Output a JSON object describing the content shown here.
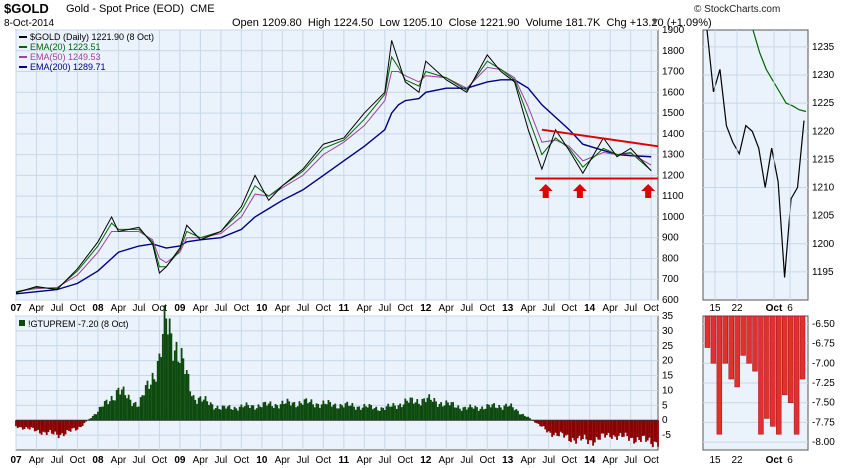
{
  "header": {
    "symbol": "$GOLD",
    "description": "Gold - Spot Price (EOD)",
    "exchange": "CME",
    "date": "8-Oct-2014",
    "open_label": "Open",
    "open": "1209.80",
    "high_label": "High",
    "high": "1224.50",
    "low_label": "Low",
    "low": "1205.10",
    "close_label": "Close",
    "close": "1221.90",
    "volume_label": "Volume",
    "volume": "181.7K",
    "chg_label": "Chg",
    "chg": "+13.20 (+1.09%)",
    "menu_glyph": "▼",
    "watermark": "© StockCharts.com"
  },
  "colors": {
    "price": "#000000",
    "ema20": "#006400",
    "ema50": "#a040a0",
    "ema200": "#000080",
    "panel_bg": "#eaf2fb",
    "grid": "#c8d8e8",
    "hist_pos": "#0d4a0d",
    "hist_neg": "#8b0000",
    "trend_line": "#e00000",
    "zoom_hist": "#e03030"
  },
  "chart_data": [
    {
      "type": "line",
      "title": "$GOLD (Daily) 1221.90 (8 Oct)",
      "legend_position": "top-left",
      "grid": true,
      "ylim": [
        600,
        1900
      ],
      "y_ticks": [
        "600",
        "700",
        "800",
        "900",
        "1000",
        "1100",
        "1200",
        "1300",
        "1400",
        "1500",
        "1600",
        "1700",
        "1800",
        "1900"
      ],
      "x_ticks": [
        "07",
        "Apr",
        "Jul",
        "Oct",
        "08",
        "Apr",
        "Jul",
        "Oct",
        "09",
        "Apr",
        "Jul",
        "Oct",
        "10",
        "Apr",
        "Jul",
        "Oct",
        "11",
        "Apr",
        "Jul",
        "Oct",
        "12",
        "Apr",
        "Jul",
        "Oct",
        "13",
        "Apr",
        "Jul",
        "Oct",
        "14",
        "Apr",
        "Jul",
        "Oct"
      ],
      "x": [
        "2007-01",
        "2007-04",
        "2007-07",
        "2007-10",
        "2008-01",
        "2008-03",
        "2008-04",
        "2008-07",
        "2008-09",
        "2008-10",
        "2008-11",
        "2009-01",
        "2009-02",
        "2009-04",
        "2009-07",
        "2009-10",
        "2009-12",
        "2010-02",
        "2010-04",
        "2010-07",
        "2010-10",
        "2011-01",
        "2011-04",
        "2011-07",
        "2011-08",
        "2011-09",
        "2011-10",
        "2011-12",
        "2012-01",
        "2012-04",
        "2012-07",
        "2012-10",
        "2012-12",
        "2013-02",
        "2013-04",
        "2013-06",
        "2013-08",
        "2013-10",
        "2013-12",
        "2014-03",
        "2014-05",
        "2014-07",
        "2014-10"
      ],
      "series": [
        {
          "name": "$GOLD (Daily)",
          "legend": "$GOLD (Daily) 1221.90 (8 Oct)",
          "values": [
            635,
            665,
            650,
            750,
            880,
            1000,
            930,
            950,
            870,
            730,
            760,
            850,
            960,
            890,
            930,
            1050,
            1200,
            1080,
            1150,
            1230,
            1350,
            1380,
            1500,
            1600,
            1850,
            1750,
            1650,
            1600,
            1750,
            1660,
            1600,
            1780,
            1700,
            1650,
            1420,
            1230,
            1420,
            1320,
            1210,
            1380,
            1290,
            1330,
            1221.9
          ]
        },
        {
          "name": "EMA(20)",
          "legend": "EMA(20) 1223.51",
          "values": [
            640,
            660,
            655,
            740,
            860,
            970,
            940,
            940,
            880,
            760,
            760,
            840,
            930,
            900,
            930,
            1030,
            1150,
            1100,
            1150,
            1220,
            1330,
            1370,
            1470,
            1590,
            1770,
            1720,
            1660,
            1630,
            1700,
            1670,
            1610,
            1750,
            1710,
            1660,
            1480,
            1300,
            1380,
            1330,
            1240,
            1330,
            1300,
            1310,
            1223.51
          ]
        },
        {
          "name": "EMA(50)",
          "legend": "EMA(50) 1249.53",
          "values": [
            640,
            655,
            660,
            720,
            830,
            930,
            930,
            930,
            890,
            800,
            780,
            830,
            900,
            900,
            920,
            1000,
            1110,
            1100,
            1140,
            1200,
            1300,
            1360,
            1440,
            1560,
            1700,
            1700,
            1680,
            1650,
            1680,
            1670,
            1620,
            1720,
            1710,
            1670,
            1530,
            1360,
            1370,
            1340,
            1270,
            1310,
            1300,
            1305,
            1249.53
          ]
        },
        {
          "name": "EMA(200)",
          "legend": "EMA(200) 1289.71",
          "values": [
            630,
            640,
            650,
            680,
            740,
            800,
            830,
            860,
            870,
            860,
            850,
            860,
            880,
            890,
            900,
            940,
            1000,
            1040,
            1080,
            1130,
            1200,
            1270,
            1340,
            1420,
            1500,
            1540,
            1560,
            1570,
            1600,
            1620,
            1620,
            1650,
            1660,
            1660,
            1620,
            1540,
            1480,
            1420,
            1350,
            1320,
            1300,
            1295,
            1289.71
          ]
        }
      ],
      "annotations": [
        "resistance trend line (red)",
        "support line near 1200 (red)",
        "three red up-arrows marking lows at ~1200"
      ]
    },
    {
      "type": "line",
      "title": "",
      "ylim": [
        1190,
        1238
      ],
      "y_ticks": [
        "1195",
        "1200",
        "1205",
        "1210",
        "1215",
        "1220",
        "1225",
        "1230",
        "1235"
      ],
      "x_ticks": [
        "15",
        "22",
        "Oct",
        "6"
      ],
      "series": [
        {
          "name": "$GOLD (Daily)",
          "values": [
            1238,
            1227,
            1231,
            1221,
            1218,
            1216,
            1221,
            1220,
            1217,
            1210,
            1217,
            1211,
            1194,
            1208,
            1210,
            1221.9
          ]
        },
        {
          "name": "EMA(20)",
          "values": [
            1238,
            1234,
            1231,
            1229,
            1227,
            1225,
            1224.5,
            1223.8,
            1223.51
          ]
        }
      ]
    },
    {
      "type": "bar",
      "title": "!GTUPREM -7.20 (8 Oct)",
      "legend_position": "top-left",
      "grid": true,
      "ylim": [
        -10,
        35
      ],
      "y_ticks": [
        "-5",
        "0",
        "5",
        "10",
        "15",
        "20",
        "25",
        "30",
        "35"
      ],
      "x": [
        "2007-01",
        "2007-07",
        "2007-10",
        "2008-01",
        "2008-04",
        "2008-07",
        "2008-10",
        "2008-11",
        "2008-12",
        "2009-03",
        "2009-07",
        "2010-01",
        "2010-07",
        "2011-01",
        "2011-07",
        "2011-10",
        "2012-01",
        "2012-07",
        "2013-01",
        "2013-04",
        "2013-07",
        "2013-10",
        "2014-01",
        "2014-04",
        "2014-07",
        "2014-10"
      ],
      "series": [
        {
          "name": "!GTUPREM",
          "values": [
            -2,
            -5,
            -3,
            3,
            10,
            5,
            20,
            33,
            28,
            8,
            4,
            5,
            6,
            5,
            4,
            6,
            7,
            4,
            5,
            1,
            -4,
            -6,
            -7,
            -5,
            -6,
            -7.2
          ]
        }
      ]
    },
    {
      "type": "bar",
      "title": "",
      "ylim": [
        -8.1,
        -6.4
      ],
      "y_ticks": [
        "-6.50",
        "-6.75",
        "-7.00",
        "-7.25",
        "-7.50",
        "-7.75",
        "-8.00"
      ],
      "x_ticks": [
        "15",
        "22",
        "Oct",
        "6"
      ],
      "series": [
        {
          "name": "!GTUPREM",
          "values": [
            -6.8,
            -7.0,
            -7.9,
            -7.0,
            -7.2,
            -7.3,
            -6.9,
            -7.0,
            -7.1,
            -7.9,
            -7.7,
            -7.8,
            -7.9,
            -7.4,
            -7.5,
            -7.9,
            -7.2
          ]
        }
      ]
    }
  ]
}
